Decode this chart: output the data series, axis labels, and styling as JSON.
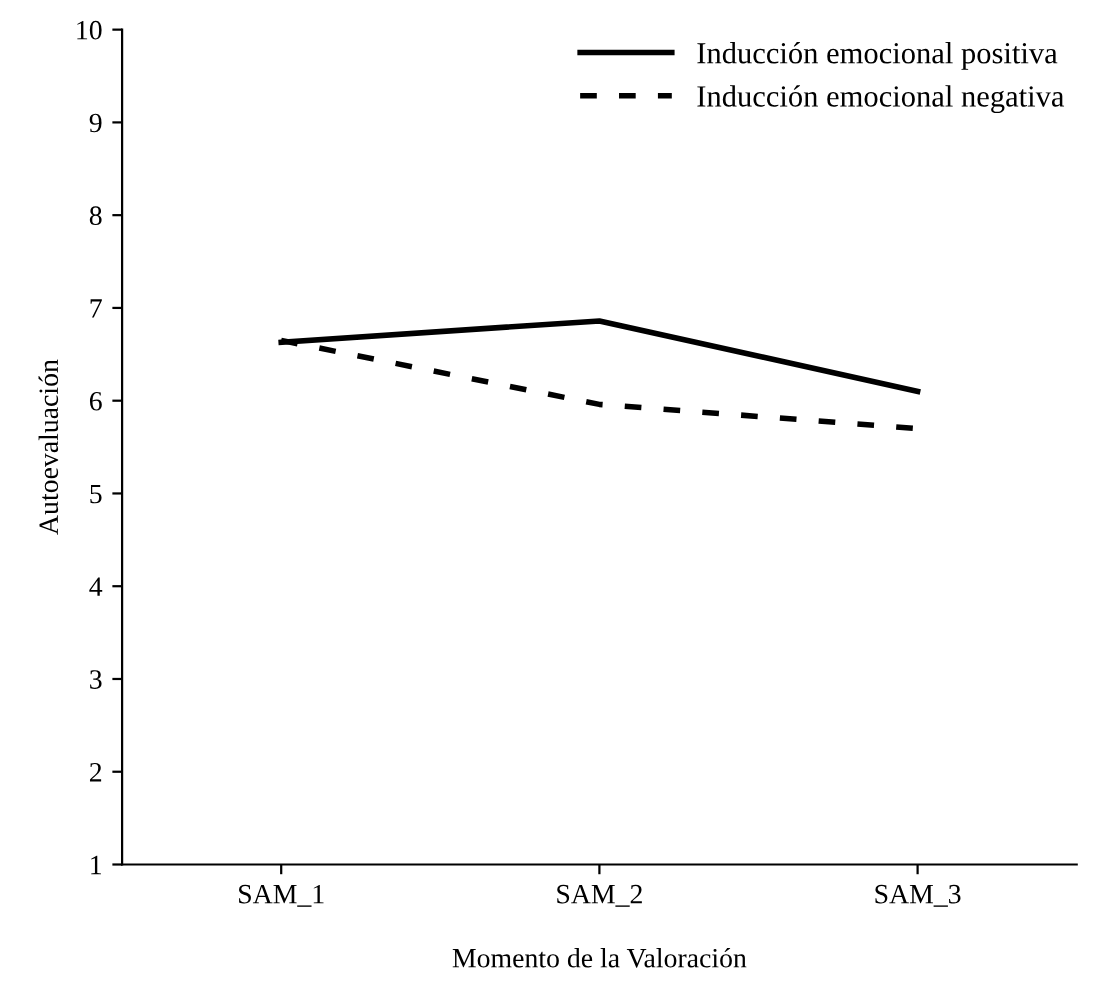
{
  "chart_data": {
    "type": "line",
    "xlabel": "Momento de la Valoración",
    "ylabel": "Autoevaluación",
    "categories": [
      "SAM_1",
      "SAM_2",
      "SAM_3"
    ],
    "series": [
      {
        "name": "Inducción emocional positiva",
        "color": "#000000",
        "line_style": "solid",
        "values": [
          6.63,
          6.86,
          6.1
        ]
      },
      {
        "name": "Inducción emocional negativa",
        "color": "#000000",
        "line_style": "dashed",
        "values": [
          6.65,
          5.96,
          5.7
        ]
      }
    ],
    "ylim": [
      1,
      10
    ],
    "yticks": [
      1,
      2,
      3,
      4,
      5,
      6,
      7,
      8,
      9,
      10
    ],
    "grid": false,
    "legend": "top right",
    "marker": "none"
  }
}
